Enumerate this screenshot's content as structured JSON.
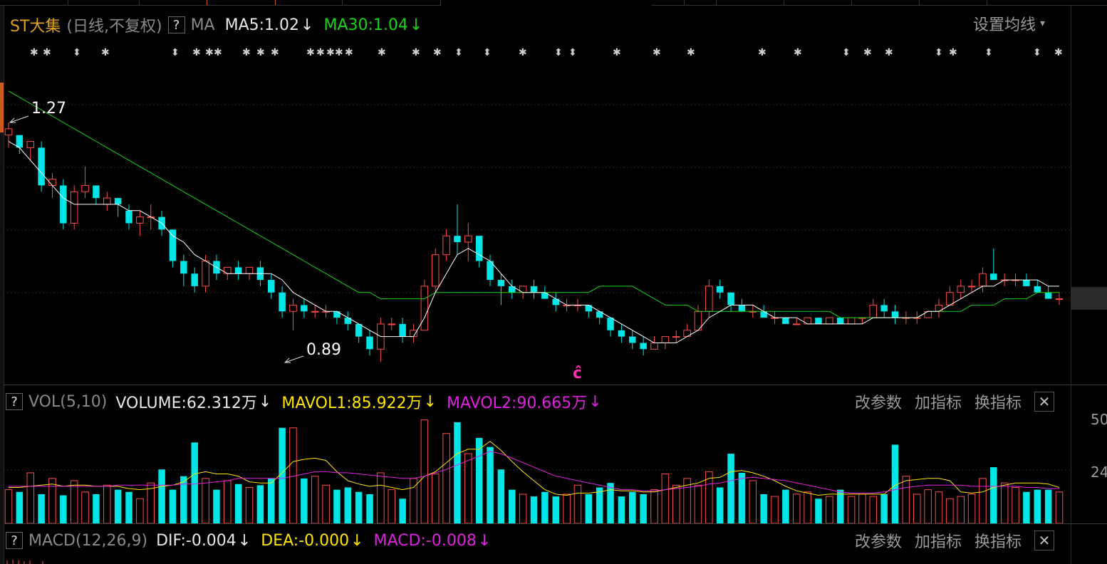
{
  "colors": {
    "up": "#ff4b4b",
    "down": "#00e6e6",
    "ma5": "#ffffff",
    "ma30": "#17d417",
    "mavol1": "#ffe400",
    "mavol2": "#e020e0"
  },
  "main_panel": {
    "stock_name": "ST大集",
    "period_label": "(日线,不复权)",
    "help": "?",
    "ma_label": "MA",
    "ma5": "MA5:1.02",
    "ma5_arrow": "↓",
    "ma30": "MA30:1.04",
    "ma30_arrow": "↓",
    "settings": "设置均线",
    "settings_caret": "▾",
    "high_label": "1.27",
    "low_label": "0.89",
    "marker": "ĉ"
  },
  "vol_panel": {
    "help": "?",
    "name": "VOL(5,10)",
    "volume": "VOLUME:62.312万",
    "volume_arrow": "↓",
    "mavol1": "MAVOL1:85.922万",
    "mavol1_arrow": "↓",
    "mavol2": "MAVOL2:90.665万",
    "mavol2_arrow": "↓",
    "btn_params": "改参数",
    "btn_add": "加指标",
    "btn_switch": "换指标",
    "close": "✕",
    "axis_top": "50",
    "axis_mid": "24"
  },
  "macd_panel": {
    "help": "?",
    "name": "MACD(12,26,9)",
    "dif": "DIF:-0.004",
    "dif_arrow": "↓",
    "dea": "DEA:-0.000",
    "dea_arrow": "↓",
    "macd": "MACD:-0.008",
    "macd_arrow": "↓",
    "btn_params": "改参数",
    "btn_add": "加指标",
    "btn_switch": "换指标",
    "close": "✕"
  },
  "chart_data": {
    "type": "candlestick",
    "price_high": 1.27,
    "price_low": 0.89,
    "candles": [
      [
        1.25,
        1.27,
        1.23,
        1.26
      ],
      [
        1.25,
        1.25,
        1.22,
        1.23
      ],
      [
        1.23,
        1.24,
        1.21,
        1.24
      ],
      [
        1.23,
        1.24,
        1.16,
        1.17
      ],
      [
        1.17,
        1.19,
        1.15,
        1.18
      ],
      [
        1.17,
        1.18,
        1.1,
        1.11
      ],
      [
        1.11,
        1.17,
        1.1,
        1.16
      ],
      [
        1.16,
        1.2,
        1.15,
        1.17
      ],
      [
        1.17,
        1.17,
        1.14,
        1.15
      ],
      [
        1.14,
        1.16,
        1.13,
        1.15
      ],
      [
        1.15,
        1.15,
        1.12,
        1.14
      ],
      [
        1.13,
        1.14,
        1.1,
        1.11
      ],
      [
        1.11,
        1.13,
        1.09,
        1.12
      ],
      [
        1.12,
        1.14,
        1.1,
        1.12
      ],
      [
        1.12,
        1.13,
        1.09,
        1.1
      ],
      [
        1.1,
        1.1,
        1.04,
        1.05
      ],
      [
        1.05,
        1.06,
        1.01,
        1.03
      ],
      [
        1.03,
        1.04,
        1.0,
        1.01
      ],
      [
        1.01,
        1.06,
        1.0,
        1.05
      ],
      [
        1.05,
        1.06,
        1.02,
        1.03
      ],
      [
        1.03,
        1.04,
        1.02,
        1.04
      ],
      [
        1.04,
        1.05,
        1.02,
        1.03
      ],
      [
        1.03,
        1.04,
        1.02,
        1.04
      ],
      [
        1.04,
        1.05,
        1.01,
        1.02
      ],
      [
        1.02,
        1.03,
        0.99,
        1.0
      ],
      [
        1.0,
        1.01,
        0.96,
        0.97
      ],
      [
        0.97,
        0.99,
        0.94,
        0.98
      ],
      [
        0.98,
        0.99,
        0.96,
        0.97
      ],
      [
        0.97,
        0.98,
        0.96,
        0.97
      ],
      [
        0.97,
        0.98,
        0.96,
        0.97
      ],
      [
        0.97,
        0.97,
        0.95,
        0.96
      ],
      [
        0.96,
        0.97,
        0.94,
        0.95
      ],
      [
        0.95,
        0.95,
        0.92,
        0.93
      ],
      [
        0.93,
        0.94,
        0.9,
        0.91
      ],
      [
        0.91,
        0.96,
        0.89,
        0.95
      ],
      [
        0.95,
        0.96,
        0.94,
        0.95
      ],
      [
        0.95,
        0.96,
        0.92,
        0.93
      ],
      [
        0.93,
        0.95,
        0.92,
        0.94
      ],
      [
        0.94,
        1.02,
        0.94,
        1.01
      ],
      [
        1.01,
        1.07,
        1.0,
        1.06
      ],
      [
        1.06,
        1.1,
        1.05,
        1.09
      ],
      [
        1.09,
        1.14,
        1.06,
        1.08
      ],
      [
        1.08,
        1.11,
        1.05,
        1.09
      ],
      [
        1.09,
        1.09,
        1.04,
        1.05
      ],
      [
        1.05,
        1.06,
        1.01,
        1.02
      ],
      [
        1.02,
        1.03,
        0.98,
        1.01
      ],
      [
        1.01,
        1.02,
        0.99,
        1.0
      ],
      [
        1.0,
        1.01,
        0.99,
        1.01
      ],
      [
        1.01,
        1.02,
        0.99,
        1.0
      ],
      [
        1.0,
        1.01,
        0.99,
        0.99
      ],
      [
        0.99,
        1.0,
        0.97,
        0.98
      ],
      [
        0.98,
        0.99,
        0.97,
        0.98
      ],
      [
        0.98,
        0.99,
        0.97,
        0.98
      ],
      [
        0.98,
        0.98,
        0.96,
        0.97
      ],
      [
        0.97,
        0.97,
        0.95,
        0.96
      ],
      [
        0.96,
        0.96,
        0.93,
        0.94
      ],
      [
        0.94,
        0.95,
        0.92,
        0.93
      ],
      [
        0.93,
        0.94,
        0.91,
        0.92
      ],
      [
        0.92,
        0.93,
        0.9,
        0.91
      ],
      [
        0.91,
        0.93,
        0.91,
        0.92
      ],
      [
        0.92,
        0.93,
        0.91,
        0.93
      ],
      [
        0.93,
        0.94,
        0.92,
        0.93
      ],
      [
        0.93,
        0.95,
        0.93,
        0.94
      ],
      [
        0.94,
        0.98,
        0.94,
        0.97
      ],
      [
        0.97,
        1.02,
        0.96,
        1.01
      ],
      [
        1.01,
        1.02,
        0.99,
        1.0
      ],
      [
        1.0,
        1.0,
        0.97,
        0.98
      ],
      [
        0.98,
        0.99,
        0.97,
        0.97
      ],
      [
        0.97,
        0.98,
        0.96,
        0.97
      ],
      [
        0.97,
        0.98,
        0.96,
        0.96
      ],
      [
        0.96,
        0.97,
        0.95,
        0.96
      ],
      [
        0.96,
        0.96,
        0.95,
        0.95
      ],
      [
        0.95,
        0.96,
        0.95,
        0.95
      ],
      [
        0.95,
        0.96,
        0.95,
        0.96
      ],
      [
        0.96,
        0.96,
        0.95,
        0.95
      ],
      [
        0.95,
        0.96,
        0.95,
        0.96
      ],
      [
        0.96,
        0.96,
        0.95,
        0.95
      ],
      [
        0.95,
        0.96,
        0.95,
        0.96
      ],
      [
        0.96,
        0.96,
        0.95,
        0.96
      ],
      [
        0.96,
        0.99,
        0.96,
        0.98
      ],
      [
        0.98,
        0.99,
        0.96,
        0.97
      ],
      [
        0.97,
        0.98,
        0.95,
        0.96
      ],
      [
        0.96,
        0.97,
        0.95,
        0.96
      ],
      [
        0.96,
        0.97,
        0.95,
        0.96
      ],
      [
        0.96,
        0.97,
        0.96,
        0.97
      ],
      [
        0.97,
        0.99,
        0.96,
        0.98
      ],
      [
        0.98,
        1.01,
        0.98,
        1.0
      ],
      [
        1.0,
        1.02,
        0.99,
        1.01
      ],
      [
        1.01,
        1.02,
        1.0,
        1.01
      ],
      [
        1.01,
        1.04,
        1.0,
        1.03
      ],
      [
        1.03,
        1.07,
        1.02,
        1.02
      ],
      [
        1.02,
        1.03,
        1.01,
        1.02
      ],
      [
        1.02,
        1.03,
        1.01,
        1.02
      ],
      [
        1.02,
        1.03,
        1.01,
        1.01
      ],
      [
        1.01,
        1.02,
        1.0,
        1.0
      ],
      [
        1.0,
        1.01,
        0.99,
        0.99
      ],
      [
        0.99,
        1.0,
        0.98,
        0.99
      ]
    ],
    "ma5": [
      1.24,
      1.23,
      1.21,
      1.19,
      1.17,
      1.15,
      1.14,
      1.14,
      1.14,
      1.14,
      1.14,
      1.13,
      1.13,
      1.12,
      1.11,
      1.09,
      1.08,
      1.06,
      1.05,
      1.04,
      1.03,
      1.03,
      1.03,
      1.03,
      1.03,
      1.02,
      1.0,
      0.99,
      0.98,
      0.97,
      0.97,
      0.96,
      0.95,
      0.94,
      0.93,
      0.93,
      0.93,
      0.93,
      0.96,
      1.0,
      1.03,
      1.06,
      1.07,
      1.06,
      1.05,
      1.03,
      1.01,
      1.0,
      1.0,
      1.0,
      0.99,
      0.98,
      0.98,
      0.98,
      0.97,
      0.96,
      0.95,
      0.94,
      0.93,
      0.92,
      0.92,
      0.92,
      0.93,
      0.94,
      0.96,
      0.97,
      0.98,
      0.98,
      0.98,
      0.97,
      0.96,
      0.96,
      0.96,
      0.95,
      0.95,
      0.95,
      0.95,
      0.95,
      0.95,
      0.96,
      0.96,
      0.96,
      0.96,
      0.96,
      0.97,
      0.97,
      0.98,
      0.99,
      1.0,
      1.01,
      1.01,
      1.02,
      1.02,
      1.02,
      1.02,
      1.01,
      1.01
    ],
    "ma30": [
      1.32,
      1.31,
      1.3,
      1.29,
      1.28,
      1.27,
      1.26,
      1.25,
      1.24,
      1.23,
      1.22,
      1.21,
      1.2,
      1.19,
      1.18,
      1.17,
      1.16,
      1.15,
      1.14,
      1.13,
      1.12,
      1.11,
      1.1,
      1.09,
      1.08,
      1.07,
      1.06,
      1.05,
      1.04,
      1.03,
      1.02,
      1.01,
      1.0,
      1.0,
      0.99,
      0.99,
      0.99,
      0.99,
      0.99,
      1.0,
      1.0,
      1.0,
      1.0,
      1.0,
      1.0,
      1.0,
      1.0,
      1.0,
      1.0,
      1.0,
      1.0,
      1.0,
      1.0,
      1.0,
      1.01,
      1.01,
      1.01,
      1.01,
      1.0,
      0.99,
      0.98,
      0.98,
      0.98,
      0.97,
      0.97,
      0.97,
      0.97,
      0.97,
      0.97,
      0.97,
      0.97,
      0.97,
      0.97,
      0.97,
      0.97,
      0.97,
      0.96,
      0.96,
      0.96,
      0.96,
      0.96,
      0.96,
      0.96,
      0.96,
      0.97,
      0.97,
      0.97,
      0.97,
      0.98,
      0.98,
      0.98,
      0.99,
      0.99,
      0.99,
      1.0,
      1.0,
      1.0
    ],
    "volumes": [
      30,
      28,
      45,
      26,
      40,
      25,
      38,
      28,
      26,
      34,
      30,
      28,
      22,
      36,
      48,
      30,
      42,
      72,
      40,
      30,
      38,
      35,
      32,
      34,
      40,
      85,
      85,
      40,
      42,
      34,
      30,
      32,
      28,
      26,
      45,
      30,
      22,
      40,
      92,
      44,
      80,
      90,
      62,
      76,
      68,
      48,
      30,
      26,
      24,
      28,
      24,
      26,
      34,
      26,
      32,
      36,
      24,
      28,
      26,
      30,
      44,
      34,
      40,
      34,
      46,
      32,
      62,
      45,
      38,
      26,
      24,
      30,
      26,
      28,
      22,
      24,
      30,
      24,
      26,
      24,
      26,
      70,
      42,
      26,
      30,
      28,
      22,
      24,
      26,
      40,
      50,
      36,
      32,
      28,
      30,
      30,
      28
    ],
    "mavol1": [
      32,
      32,
      33,
      34,
      35,
      33,
      34,
      34,
      33,
      33,
      33,
      31,
      30,
      31,
      33,
      34,
      37,
      44,
      46,
      44,
      44,
      42,
      37,
      36,
      36,
      45,
      55,
      57,
      58,
      56,
      46,
      38,
      35,
      33,
      34,
      32,
      30,
      32,
      42,
      46,
      54,
      62,
      66,
      66,
      73,
      65,
      55,
      46,
      38,
      30,
      26,
      25,
      27,
      27,
      28,
      30,
      29,
      29,
      28,
      28,
      30,
      32,
      34,
      36,
      40,
      41,
      46,
      47,
      45,
      42,
      38,
      33,
      29,
      27,
      25,
      26,
      26,
      26,
      26,
      26,
      26,
      34,
      38,
      39,
      40,
      40,
      38,
      28,
      27,
      28,
      32,
      34,
      36,
      36,
      36,
      35,
      32
    ],
    "mavol2": [
      33,
      33,
      33,
      33,
      33,
      33,
      33,
      33,
      33,
      33,
      34,
      34,
      34,
      34,
      34,
      34,
      35,
      35,
      36,
      37,
      38,
      40,
      40,
      40,
      40,
      40,
      42,
      44,
      46,
      46,
      45,
      45,
      44,
      43,
      42,
      41,
      40,
      40,
      42,
      45,
      48,
      52,
      56,
      60,
      64,
      62,
      58,
      54,
      50,
      46,
      42,
      40,
      38,
      36,
      34,
      32,
      30,
      30,
      29,
      29,
      30,
      31,
      32,
      33,
      35,
      36,
      38,
      40,
      41,
      40,
      39,
      38,
      36,
      34,
      32,
      30,
      28,
      27,
      27,
      27,
      28,
      30,
      32,
      33,
      34,
      34,
      34,
      34,
      33,
      33,
      33,
      33,
      33,
      32,
      32,
      31,
      31
    ]
  }
}
